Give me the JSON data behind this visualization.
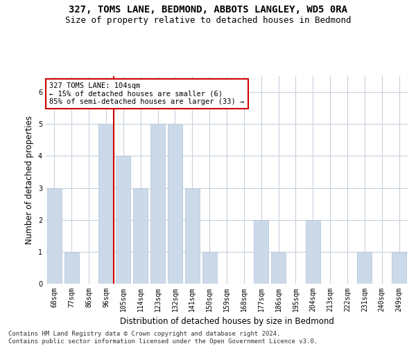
{
  "title": "327, TOMS LANE, BEDMOND, ABBOTS LANGLEY, WD5 0RA",
  "subtitle": "Size of property relative to detached houses in Bedmond",
  "xlabel": "Distribution of detached houses by size in Bedmond",
  "ylabel": "Number of detached properties",
  "categories": [
    "68sqm",
    "77sqm",
    "86sqm",
    "96sqm",
    "105sqm",
    "114sqm",
    "123sqm",
    "132sqm",
    "141sqm",
    "150sqm",
    "159sqm",
    "168sqm",
    "177sqm",
    "186sqm",
    "195sqm",
    "204sqm",
    "213sqm",
    "222sqm",
    "231sqm",
    "240sqm",
    "249sqm"
  ],
  "values": [
    3,
    1,
    0,
    5,
    4,
    3,
    5,
    5,
    3,
    1,
    0,
    0,
    2,
    1,
    0,
    2,
    0,
    0,
    1,
    0,
    1
  ],
  "bar_color": "#ccd9e8",
  "bar_edgecolor": "#aec4d8",
  "highlight_index": 3,
  "highlight_line_color": "#cc0000",
  "annotation_text": "327 TOMS LANE: 104sqm\n← 15% of detached houses are smaller (6)\n85% of semi-detached houses are larger (33) →",
  "annotation_box_color": "#ffffff",
  "annotation_box_edgecolor": "#cc0000",
  "ylim": [
    0,
    6.5
  ],
  "yticks": [
    0,
    1,
    2,
    3,
    4,
    5,
    6
  ],
  "footer": "Contains HM Land Registry data © Crown copyright and database right 2024.\nContains public sector information licensed under the Open Government Licence v3.0.",
  "background_color": "#ffffff",
  "grid_color": "#c8d0dc",
  "title_fontsize": 10,
  "subtitle_fontsize": 9,
  "xlabel_fontsize": 8.5,
  "ylabel_fontsize": 8.5,
  "tick_fontsize": 7,
  "annotation_fontsize": 7.5,
  "footer_fontsize": 6.5
}
